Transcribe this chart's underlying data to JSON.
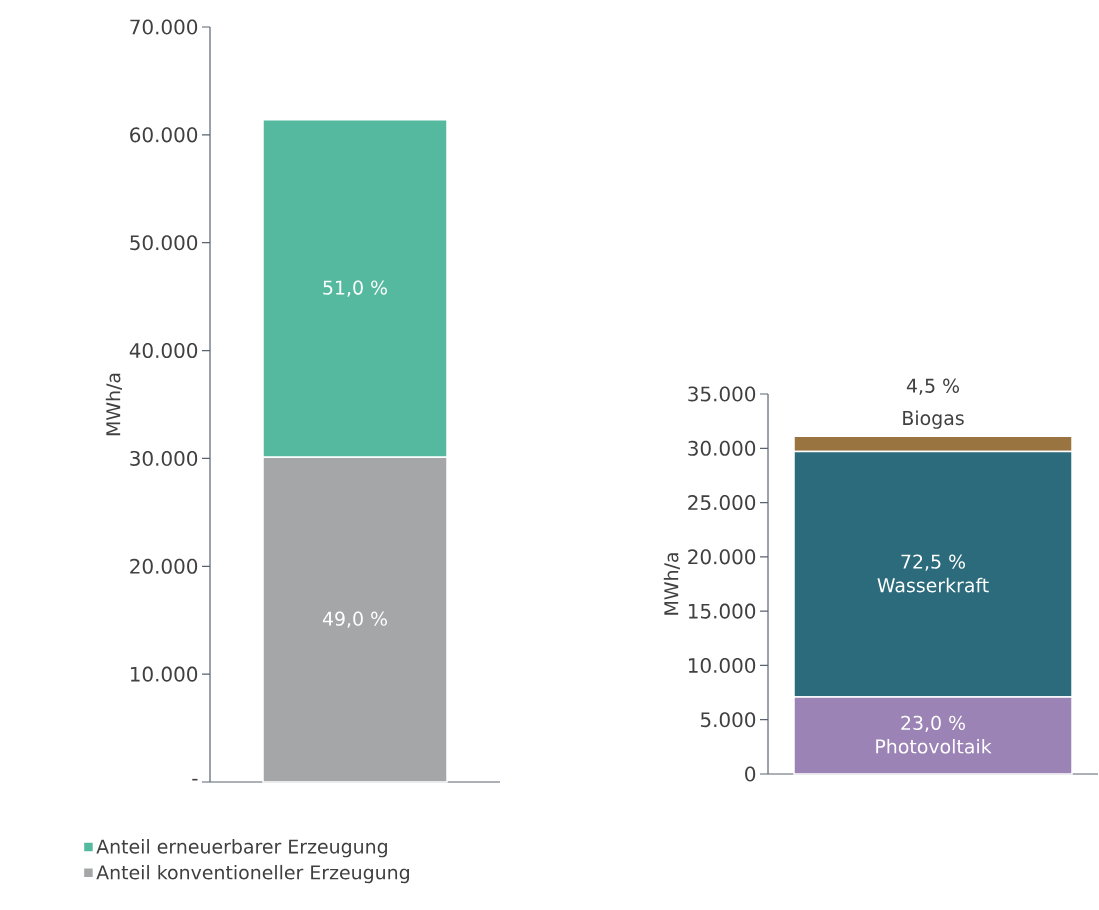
{
  "chart_data": [
    {
      "type": "bar",
      "stacked": true,
      "ylabel": "MWh/a",
      "categories": [
        null
      ],
      "ylim": [
        0,
        70000
      ],
      "yticks": [
        {
          "value": 0,
          "label": "-"
        },
        {
          "value": 10000,
          "label": "10.000"
        },
        {
          "value": 20000,
          "label": "20.000"
        },
        {
          "value": 30000,
          "label": "30.000"
        },
        {
          "value": 40000,
          "label": "40.000"
        },
        {
          "value": 50000,
          "label": "50.000"
        },
        {
          "value": 60000,
          "label": "60.000"
        },
        {
          "value": 70000,
          "label": "70.000"
        }
      ],
      "legend": "bottom",
      "series": [
        {
          "name": "Anteil konventioneller Erzeugung",
          "color": "#a5a6a8",
          "values": [
            30100
          ]
        },
        {
          "name": "Anteil erneuerbarer Erzeugung",
          "color": "#55b9a0",
          "values": [
            31300
          ]
        }
      ],
      "annotations": [
        "49,0 %",
        "51,0 %"
      ]
    },
    {
      "type": "bar",
      "stacked": true,
      "ylabel": "MWh/a",
      "categories": [
        null
      ],
      "ylim": [
        0,
        35000
      ],
      "yticks": [
        {
          "value": 0,
          "label": "0"
        },
        {
          "value": 5000,
          "label": "5.000"
        },
        {
          "value": 10000,
          "label": "10.000"
        },
        {
          "value": 15000,
          "label": "15.000"
        },
        {
          "value": 20000,
          "label": "20.000"
        },
        {
          "value": 25000,
          "label": "25.000"
        },
        {
          "value": 30000,
          "label": "30.000"
        },
        {
          "value": 35000,
          "label": "35.000"
        }
      ],
      "series": [
        {
          "name": "Photovoltaik",
          "color": "#9b84b5",
          "values": [
            7100
          ]
        },
        {
          "name": "Wasserkraft",
          "color": "#2b6b7b",
          "values": [
            22600
          ]
        },
        {
          "name": "Biogas",
          "color": "#9a7440",
          "values": [
            1400
          ]
        }
      ],
      "annotations": [
        "23,0 %",
        "72,5 %",
        "4,5 %"
      ]
    }
  ]
}
